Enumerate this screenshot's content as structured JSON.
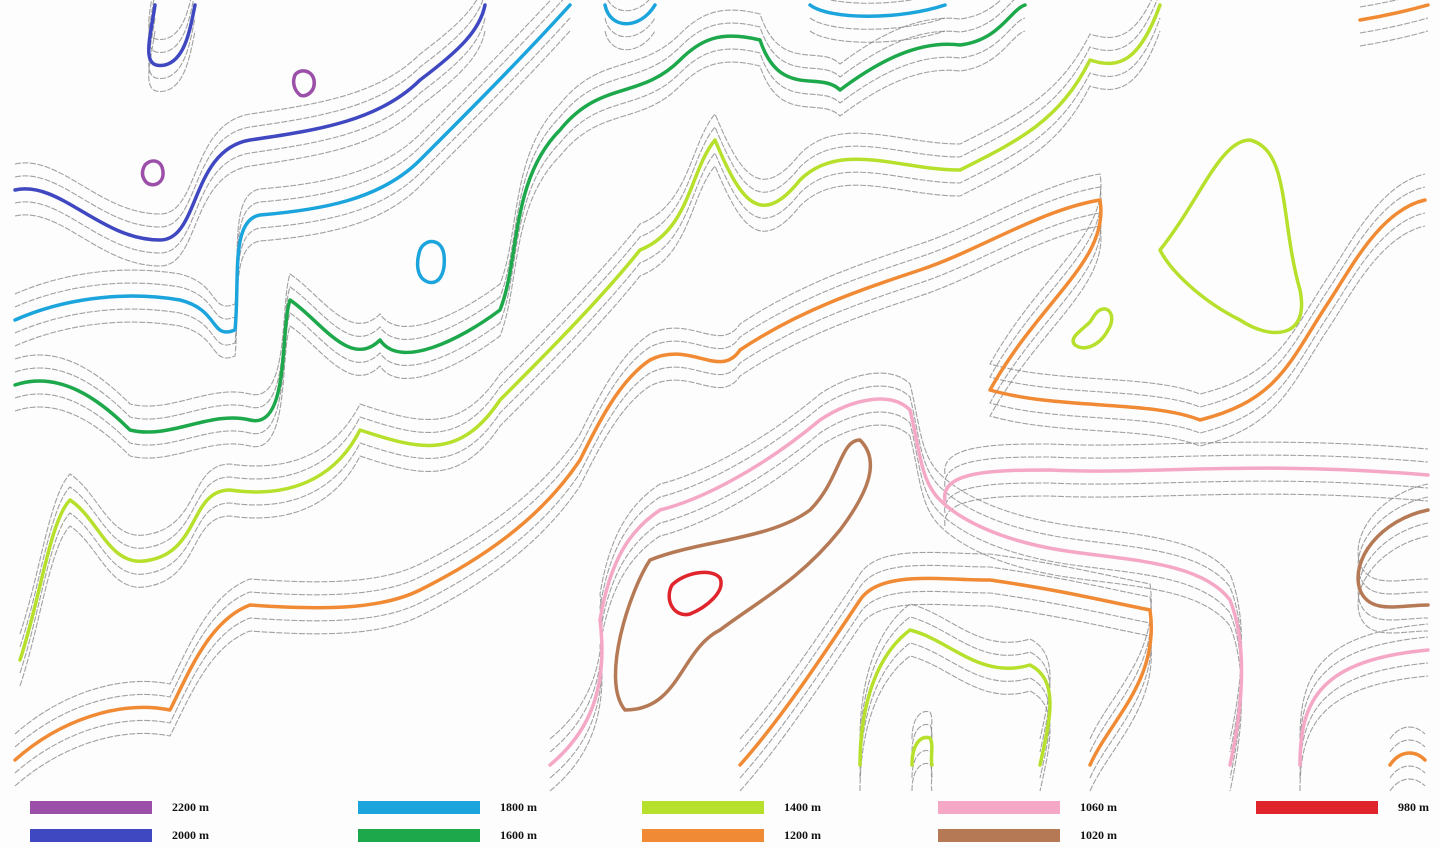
{
  "legend": {
    "items": [
      {
        "label": "2200 m",
        "color": "#9b4fa8"
      },
      {
        "label": "2000 m",
        "color": "#3f48c0"
      },
      {
        "label": "1800 m",
        "color": "#1ca4dc"
      },
      {
        "label": "1600 m",
        "color": "#1ea84c"
      },
      {
        "label": "1400 m",
        "color": "#b6e02c"
      },
      {
        "label": "1200 m",
        "color": "#f08a34"
      },
      {
        "label": "1060 m",
        "color": "#f5a8c6"
      },
      {
        "label": "1020 m",
        "color": "#b57a55"
      },
      {
        "label": "980 m",
        "color": "#e0242b"
      }
    ]
  }
}
